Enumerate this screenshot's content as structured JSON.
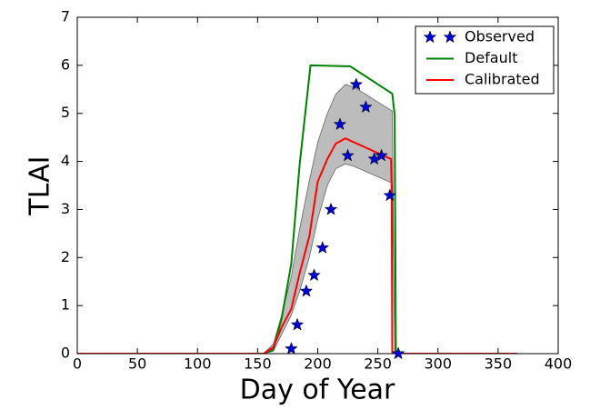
{
  "chart_data": {
    "type": "line",
    "xlabel": "Day of Year",
    "ylabel": "TLAI",
    "xlim": [
      0,
      400
    ],
    "xticks": [
      0,
      50,
      100,
      150,
      200,
      250,
      300,
      350,
      400
    ],
    "ylim": [
      0,
      7
    ],
    "yticks": [
      0,
      1,
      2,
      3,
      4,
      5,
      6,
      7
    ],
    "grid": false,
    "legend": "upper right",
    "band": {
      "color": "#a0a0a0",
      "x": [
        155,
        163,
        170,
        178,
        185,
        193,
        200,
        208,
        215,
        223,
        230,
        262,
        264
      ],
      "upper": [
        0,
        0.2,
        0.8,
        1.6,
        2.6,
        3.6,
        4.4,
        5.0,
        5.4,
        5.6,
        5.55,
        5.05,
        0
      ],
      "lower": [
        0,
        0.05,
        0.4,
        0.8,
        1.3,
        2.0,
        2.8,
        3.5,
        3.85,
        3.95,
        3.9,
        3.55,
        0
      ]
    },
    "series": [
      {
        "name": "Observed",
        "color": "#0000cc",
        "kind": "scatter",
        "marker": "star",
        "x": [
          178,
          183,
          190.5,
          197,
          204,
          211,
          218.5,
          225,
          232,
          240,
          247,
          253,
          260,
          267
        ],
        "values": [
          0.1,
          0.6,
          1.3,
          1.63,
          2.2,
          3.0,
          4.77,
          4.12,
          5.6,
          5.13,
          4.05,
          4.12,
          3.29,
          0
        ]
      },
      {
        "name": "Default",
        "color": "#008000",
        "kind": "line",
        "x": [
          0,
          155,
          163,
          166,
          170,
          178,
          185,
          194,
          227,
          262,
          264,
          265,
          366
        ],
        "values": [
          0,
          0,
          0.08,
          0.36,
          0.74,
          1.87,
          3.95,
          6.0,
          5.98,
          5.41,
          4.96,
          0,
          0
        ]
      },
      {
        "name": "Calibrated",
        "color": "#ff0000",
        "kind": "line",
        "x": [
          0,
          155,
          163,
          170,
          178,
          185,
          193,
          200,
          208,
          215,
          223,
          261,
          261.5,
          262,
          366
        ],
        "values": [
          0,
          0,
          0.13,
          0.55,
          0.93,
          1.68,
          2.44,
          3.58,
          4.05,
          4.37,
          4.48,
          4.05,
          3.29,
          0,
          0
        ]
      }
    ]
  }
}
